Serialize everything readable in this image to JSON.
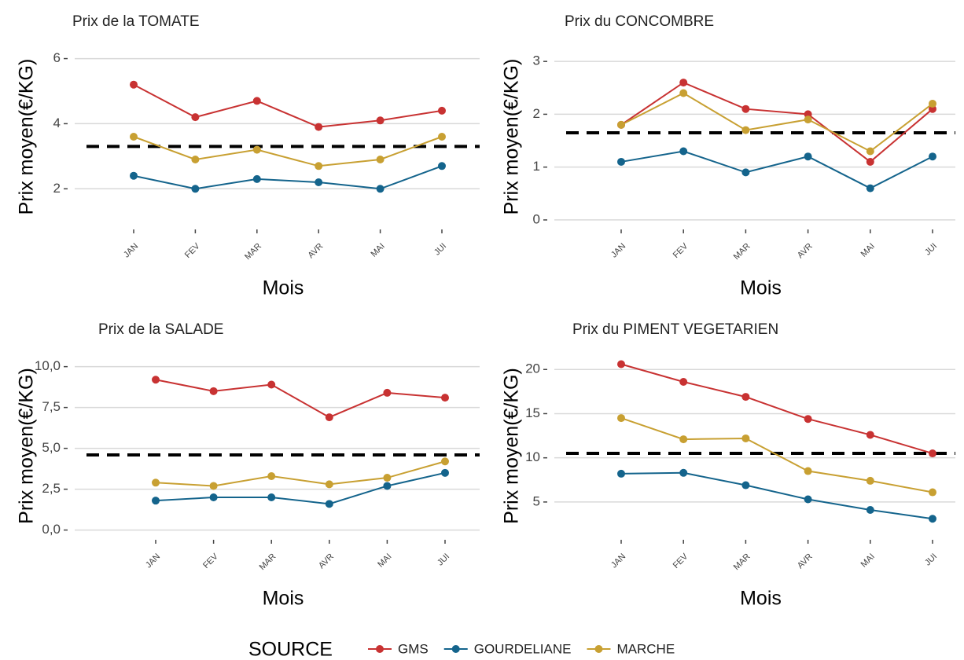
{
  "chart_data": [
    {
      "type": "line",
      "title": "Prix de la TOMATE",
      "xlabel": "Mois",
      "ylabel": "Prix moyen(€/KG)",
      "categories": [
        "JAN",
        "FEV",
        "MAR",
        "AVR",
        "MAI",
        "JUI"
      ],
      "series": [
        {
          "values": [
            5.2,
            4.2,
            4.7,
            3.9,
            4.1,
            4.4
          ]
        },
        {
          "values": [
            2.4,
            2.0,
            2.3,
            2.2,
            2.0,
            2.7
          ]
        },
        {
          "values": [
            3.6,
            2.9,
            3.2,
            2.7,
            2.9,
            3.6
          ]
        }
      ],
      "hline": 3.3,
      "ylim": [
        0.8,
        6.4
      ],
      "yticks": [
        2,
        4,
        6
      ],
      "grid": true
    },
    {
      "type": "line",
      "title": "Prix du CONCOMBRE",
      "xlabel": "Mois",
      "ylabel": "Prix moyen(€/KG)",
      "categories": [
        "JAN",
        "FEV",
        "MAR",
        "AVR",
        "MAI",
        "JUI"
      ],
      "series": [
        {
          "values": [
            1.8,
            2.6,
            2.1,
            2.0,
            1.1,
            2.1
          ]
        },
        {
          "values": [
            1.1,
            1.3,
            0.9,
            1.2,
            0.6,
            1.2
          ]
        },
        {
          "values": [
            1.8,
            2.4,
            1.7,
            1.9,
            1.3,
            2.2
          ]
        }
      ],
      "hline": 1.65,
      "ylim": [
        -0.15,
        3.3
      ],
      "yticks": [
        0,
        1,
        2,
        3
      ],
      "grid": true
    },
    {
      "type": "line",
      "title": "Prix de la SALADE",
      "xlabel": "Mois",
      "ylabel": "Prix moyen(€/KG)",
      "categories": [
        "JAN",
        "FEV",
        "MAR",
        "AVR",
        "MAI",
        "JUI"
      ],
      "series": [
        {
          "values": [
            9.2,
            8.5,
            8.9,
            6.9,
            8.4,
            8.1
          ]
        },
        {
          "values": [
            1.8,
            2.0,
            2.0,
            1.6,
            2.7,
            3.5
          ]
        },
        {
          "values": [
            2.9,
            2.7,
            3.3,
            2.8,
            3.2,
            4.2
          ]
        }
      ],
      "hline": 4.6,
      "ylim": [
        -0.5,
        10.8
      ],
      "yticks": [
        {
          "value": 0,
          "label": "0,0"
        },
        {
          "value": 2.5,
          "label": "2,5"
        },
        {
          "value": 5,
          "label": "5,0"
        },
        {
          "value": 7.5,
          "label": "7,5"
        },
        {
          "value": 10,
          "label": "10,0"
        }
      ],
      "grid": true
    },
    {
      "type": "line",
      "title": "Prix du PIMENT VEGETARIEN",
      "xlabel": "Mois",
      "ylabel": "Prix moyen(€/KG)",
      "categories": [
        "JAN",
        "FEV",
        "MAR",
        "AVR",
        "MAI",
        "JUI"
      ],
      "series": [
        {
          "values": [
            20.6,
            18.6,
            16.9,
            14.4,
            12.6,
            10.5
          ]
        },
        {
          "values": [
            8.2,
            8.3,
            6.9,
            5.3,
            4.1,
            3.1
          ]
        },
        {
          "values": [
            14.5,
            12.1,
            12.2,
            8.5,
            7.4,
            6.1
          ]
        }
      ],
      "hline": 10.5,
      "ylim": [
        0.9,
        21.8
      ],
      "yticks": [
        5,
        10,
        15,
        20
      ],
      "grid": true
    }
  ],
  "legend": {
    "title": "SOURCE",
    "series": [
      {
        "name": "GMS",
        "color": "#c83232"
      },
      {
        "name": "GOURDELIANE",
        "color": "#14648c"
      },
      {
        "name": "MARCHE",
        "color": "#c8a032"
      }
    ]
  }
}
